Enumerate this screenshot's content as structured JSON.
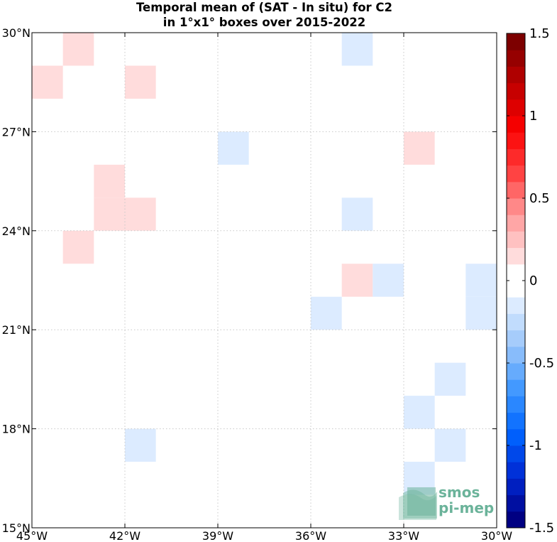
{
  "chart_data": {
    "type": "heatmap",
    "title_lines": [
      "Temporal mean of (SAT - In situ) for C2",
      "in 1°x1° boxes over 2015-2022"
    ],
    "x_ticks": [
      {
        "value": -45,
        "label": "45°W"
      },
      {
        "value": -42,
        "label": "42°W"
      },
      {
        "value": -39,
        "label": "39°W"
      },
      {
        "value": -36,
        "label": "36°W"
      },
      {
        "value": -33,
        "label": "33°W"
      },
      {
        "value": -30,
        "label": "30°W"
      }
    ],
    "y_ticks": [
      {
        "value": 15,
        "label": "15°N"
      },
      {
        "value": 18,
        "label": "18°N"
      },
      {
        "value": 21,
        "label": "21°N"
      },
      {
        "value": 24,
        "label": "24°N"
      },
      {
        "value": 27,
        "label": "27°N"
      },
      {
        "value": 30,
        "label": "30°N"
      }
    ],
    "xlim": [
      -45,
      -30
    ],
    "ylim": [
      15,
      30
    ],
    "grid": true,
    "colorbar": {
      "range": [
        -1.5,
        1.5
      ],
      "levels": 30,
      "ticks": [
        {
          "value": 1.5,
          "label": "1.5"
        },
        {
          "value": 1,
          "label": "1"
        },
        {
          "value": 0.5,
          "label": "0.5"
        },
        {
          "value": 0,
          "label": "0"
        },
        {
          "value": -0.5,
          "label": "-0.5"
        },
        {
          "value": -1,
          "label": "-1"
        },
        {
          "value": -1.5,
          "label": "-1.5"
        }
      ]
    },
    "cells": [
      {
        "lon": -44,
        "lat": 29,
        "value": 0.15
      },
      {
        "lon": -45,
        "lat": 28,
        "value": 0.15
      },
      {
        "lon": -42,
        "lat": 28,
        "value": 0.15
      },
      {
        "lon": -35,
        "lat": 29,
        "value": -0.15
      },
      {
        "lon": -39,
        "lat": 26,
        "value": -0.15
      },
      {
        "lon": -33,
        "lat": 26,
        "value": 0.15
      },
      {
        "lon": -43,
        "lat": 25,
        "value": 0.15
      },
      {
        "lon": -43,
        "lat": 24,
        "value": 0.15
      },
      {
        "lon": -42,
        "lat": 24,
        "value": 0.15
      },
      {
        "lon": -35,
        "lat": 24,
        "value": -0.15
      },
      {
        "lon": -44,
        "lat": 23,
        "value": 0.15
      },
      {
        "lon": -35,
        "lat": 22,
        "value": 0.15
      },
      {
        "lon": -34,
        "lat": 22,
        "value": -0.15
      },
      {
        "lon": -31,
        "lat": 22,
        "value": -0.15
      },
      {
        "lon": -36,
        "lat": 21,
        "value": -0.15
      },
      {
        "lon": -31,
        "lat": 21,
        "value": -0.15
      },
      {
        "lon": -32,
        "lat": 19,
        "value": -0.15
      },
      {
        "lon": -33,
        "lat": 18,
        "value": -0.15
      },
      {
        "lon": -42,
        "lat": 17,
        "value": -0.15
      },
      {
        "lon": -32,
        "lat": 17,
        "value": -0.15
      },
      {
        "lon": -33,
        "lat": 16,
        "value": -0.15
      }
    ]
  },
  "logo": {
    "line1": "smos",
    "line2": "pi-mep",
    "color": "#6bb39a"
  }
}
